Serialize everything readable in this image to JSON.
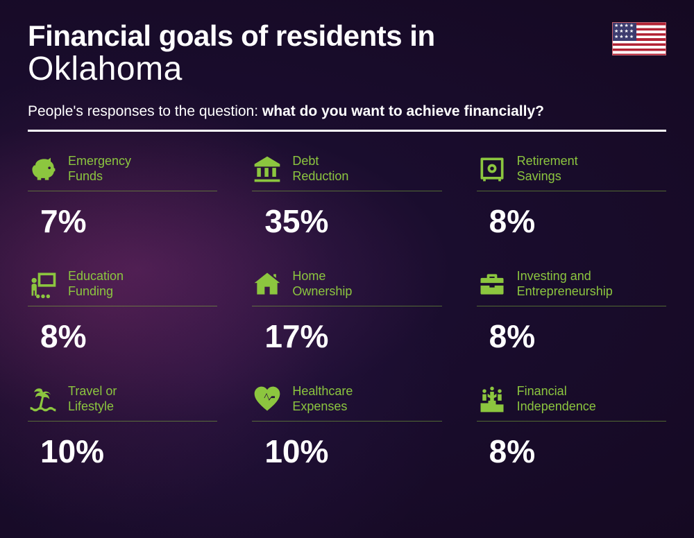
{
  "title_line1": "Financial goals of residents in",
  "title_line2": "Oklahoma",
  "subtitle_prefix": "People's responses to the question: ",
  "subtitle_bold": "what do you want to achieve financially?",
  "accent_color": "#8cc63f",
  "text_color": "#ffffff",
  "background_gradient": [
    "#3d1a4a",
    "#1a0d2e",
    "#150922"
  ],
  "title_fontsize_line1": 42,
  "title_fontsize_line2": 48,
  "subtitle_fontsize": 21,
  "percent_fontsize": 46,
  "label_fontsize": 18,
  "grid_columns": 3,
  "items": [
    {
      "label": "Emergency\nFunds",
      "percent": "7%",
      "icon": "piggy-bank-icon"
    },
    {
      "label": "Debt\nReduction",
      "percent": "35%",
      "icon": "bank-icon"
    },
    {
      "label": "Retirement\nSavings",
      "percent": "8%",
      "icon": "safe-icon"
    },
    {
      "label": "Education\nFunding",
      "percent": "8%",
      "icon": "presentation-icon"
    },
    {
      "label": "Home\nOwnership",
      "percent": "17%",
      "icon": "house-icon"
    },
    {
      "label": "Investing and\nEntrepreneurship",
      "percent": "8%",
      "icon": "briefcase-icon"
    },
    {
      "label": "Travel or\nLifestyle",
      "percent": "10%",
      "icon": "palm-beach-icon"
    },
    {
      "label": "Healthcare\nExpenses",
      "percent": "10%",
      "icon": "heart-pulse-icon"
    },
    {
      "label": "Financial\nIndependence",
      "percent": "8%",
      "icon": "podium-icon"
    }
  ]
}
